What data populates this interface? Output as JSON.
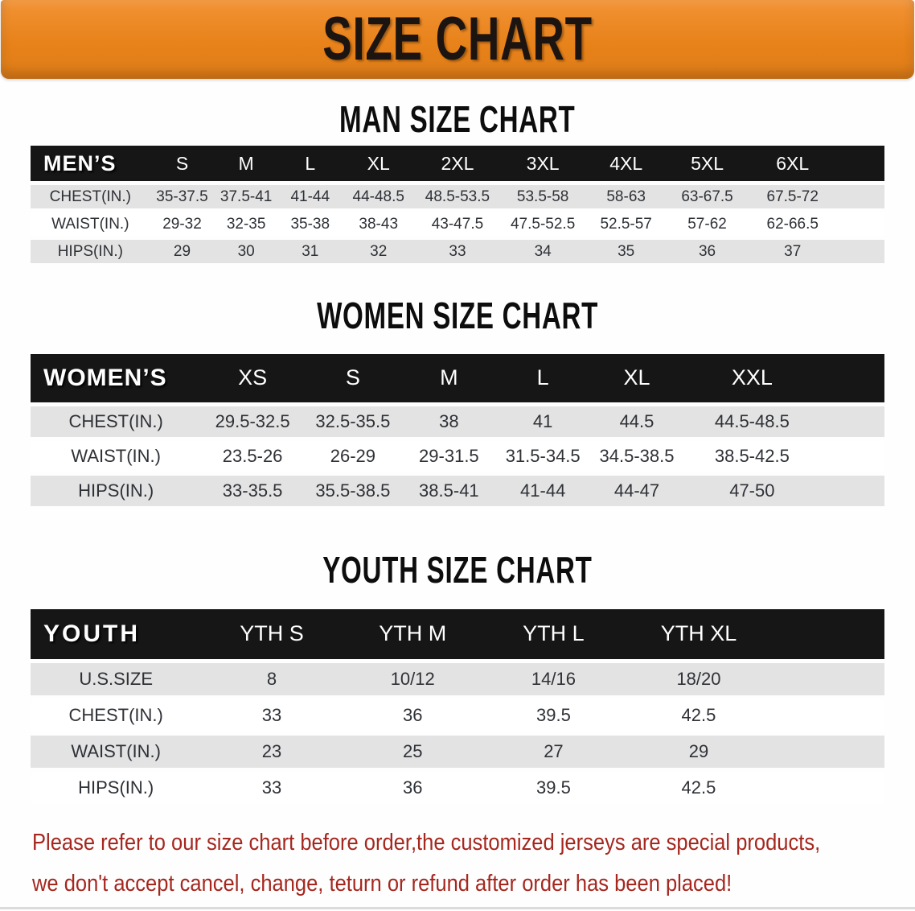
{
  "banner": {
    "title": "SIZE CHART",
    "bg_color": "#e8821a",
    "text_color": "#1c1410"
  },
  "sections": [
    {
      "id": "men",
      "title": "MAN SIZE CHART",
      "corner_label": "MEN’S",
      "columns": [
        "S",
        "M",
        "L",
        "XL",
        "2XL",
        "3XL",
        "4XL",
        "5XL",
        "6XL"
      ],
      "rows": [
        {
          "label": "CHEST(IN.)",
          "values": [
            "35-37.5",
            "37.5-41",
            "41-44",
            "44-48.5",
            "48.5-53.5",
            "53.5-58",
            "58-63",
            "63-67.5",
            "67.5-72"
          ]
        },
        {
          "label": "WAIST(IN.)",
          "values": [
            "29-32",
            "32-35",
            "35-38",
            "38-43",
            "43-47.5",
            "47.5-52.5",
            "52.5-57",
            "57-62",
            "62-66.5"
          ]
        },
        {
          "label": "HIPS(IN.)",
          "values": [
            "29",
            "30",
            "31",
            "32",
            "33",
            "34",
            "35",
            "36",
            "37"
          ]
        }
      ]
    },
    {
      "id": "women",
      "title": "WOMEN SIZE CHART",
      "corner_label": "WOMEN’S",
      "columns": [
        "XS",
        "S",
        "M",
        "L",
        "XL",
        "XXL"
      ],
      "rows": [
        {
          "label": "CHEST(IN.)",
          "values": [
            "29.5-32.5",
            "32.5-35.5",
            "38",
            "41",
            "44.5",
            "44.5-48.5"
          ]
        },
        {
          "label": "WAIST(IN.)",
          "values": [
            "23.5-26",
            "26-29",
            "29-31.5",
            "31.5-34.5",
            "34.5-38.5",
            "38.5-42.5"
          ]
        },
        {
          "label": "HIPS(IN.)",
          "values": [
            "33-35.5",
            "35.5-38.5",
            "38.5-41",
            "41-44",
            "44-47",
            "47-50"
          ]
        }
      ]
    },
    {
      "id": "youth",
      "title": "YOUTH SIZE CHART",
      "corner_label": "YOUTH",
      "columns": [
        "YTH S",
        "YTH M",
        "YTH L",
        "YTH XL"
      ],
      "rows": [
        {
          "label": "U.S.SIZE",
          "values": [
            "8",
            "10/12",
            "14/16",
            "18/20"
          ]
        },
        {
          "label": "CHEST(IN.)",
          "values": [
            "33",
            "36",
            "39.5",
            "42.5"
          ]
        },
        {
          "label": "WAIST(IN.)",
          "values": [
            "23",
            "25",
            "27",
            "29"
          ]
        },
        {
          "label": "HIPS(IN.)",
          "values": [
            "33",
            "36",
            "39.5",
            "42.5"
          ]
        }
      ]
    }
  ],
  "footer": {
    "line1": "Please refer to our size chart before order,the customized jerseys are special products,",
    "line2": "we don't accept cancel, change, teturn or refund after order has been placed!",
    "text_color": "#a5271e"
  },
  "colors": {
    "header_row_bg": "#161616",
    "row_alt_bg": "#e3e3e3",
    "row_bg": "#ffffff"
  }
}
